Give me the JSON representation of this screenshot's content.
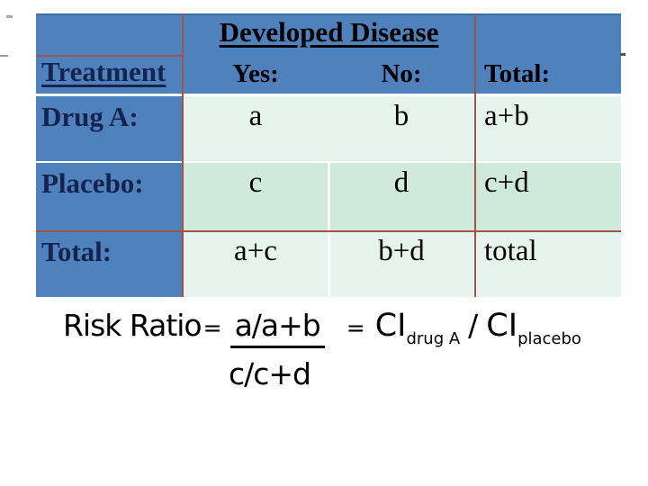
{
  "slide": {
    "table": {
      "corner_label": "Treatment",
      "span_header": "Developed Disease",
      "col_headers": {
        "yes": "Yes:",
        "no": "No:",
        "total": "Total:"
      },
      "rows": [
        {
          "label": "Drug A:",
          "yes": "a",
          "no": "b",
          "total": "a+b"
        },
        {
          "label": "Placebo:",
          "yes": "c",
          "no": "d",
          "total": "c+d"
        },
        {
          "label": "Total:",
          "yes": "a+c",
          "no": "b+d",
          "total": "total"
        }
      ]
    },
    "formula": {
      "lhs": "Risk Ratio",
      "equals1": "=",
      "numerator": "a/a+b",
      "denominator": "c/c+d",
      "equals2": "=",
      "ci_drug": "CI",
      "ci_drug_sub": "drug A",
      "divide": "/",
      "ci_placebo": "CI",
      "ci_placebo_sub": "placebo"
    },
    "colors": {
      "header_blue": "#4f81bd",
      "row_light": "#e6f4ed",
      "row_dark": "#cfeadb",
      "border_red": "#a0544a",
      "label_navy": "#15234f"
    }
  }
}
